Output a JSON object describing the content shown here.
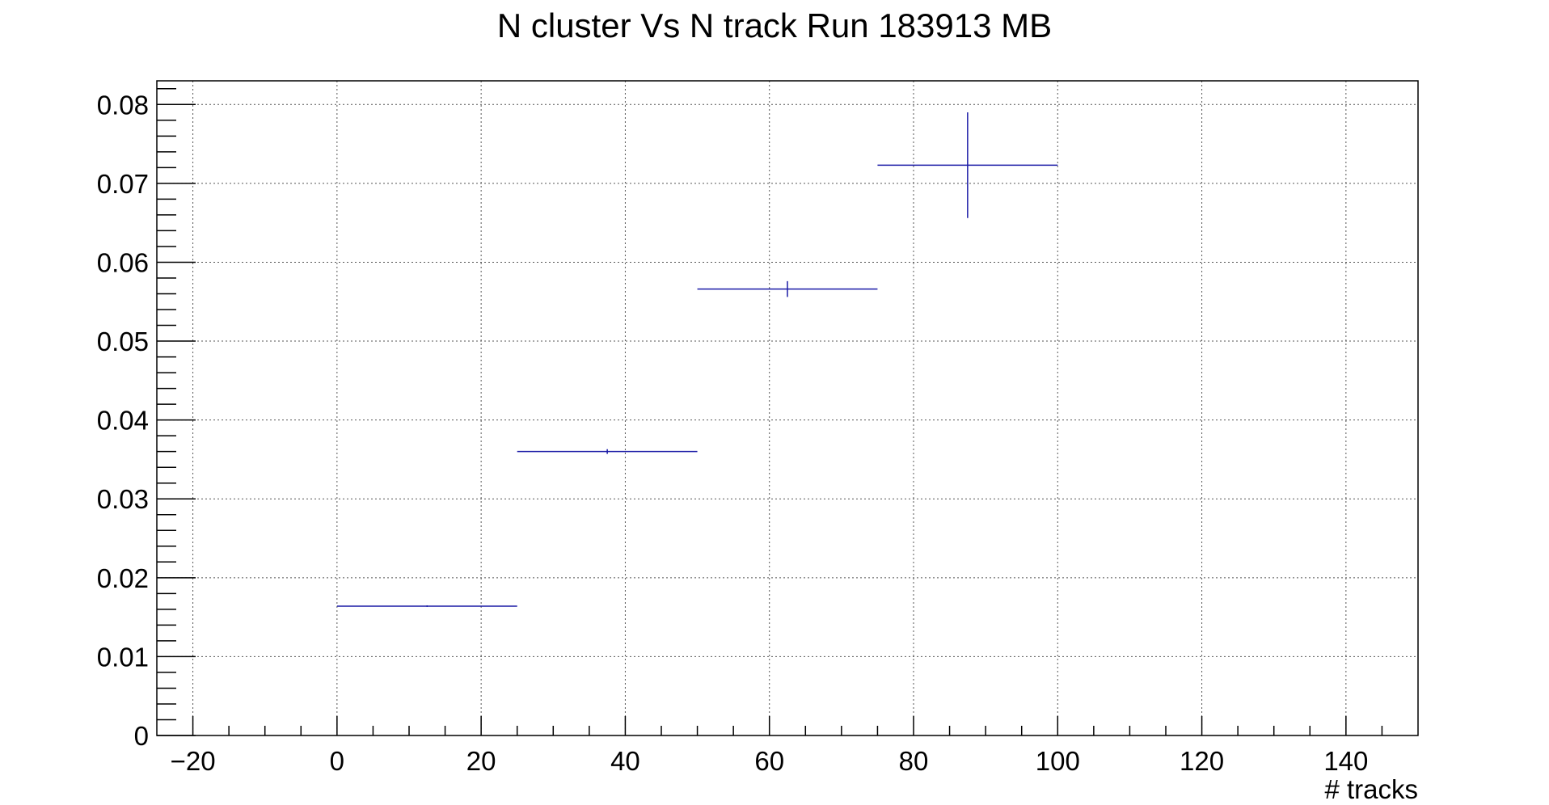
{
  "chart_data": {
    "type": "scatter",
    "title": "N cluster Vs N track Run 183913 MB",
    "xlabel": "# tracks",
    "ylabel": "",
    "xlim": [
      -25,
      150
    ],
    "ylim": [
      0,
      0.083
    ],
    "grid": true,
    "x_ticks": [
      -20,
      0,
      20,
      40,
      60,
      80,
      100,
      120,
      140
    ],
    "x_tick_labels": [
      "−20",
      "0",
      "20",
      "40",
      "60",
      "80",
      "100",
      "120",
      "140"
    ],
    "y_ticks": [
      0,
      0.01,
      0.02,
      0.03,
      0.04,
      0.05,
      0.06,
      0.07,
      0.08
    ],
    "y_tick_labels": [
      "0",
      "0.01",
      "0.02",
      "0.03",
      "0.04",
      "0.05",
      "0.06",
      "0.07",
      "0.08"
    ],
    "series": [
      {
        "color": "#1a1aa6",
        "points": [
          {
            "x": 12.5,
            "y": 0.0164,
            "x_err": 12.5,
            "y_err": 0.0001
          },
          {
            "x": 37.5,
            "y": 0.036,
            "x_err": 12.5,
            "y_err": 0.0003
          },
          {
            "x": 62.5,
            "y": 0.0566,
            "x_err": 12.5,
            "y_err": 0.001
          },
          {
            "x": 87.5,
            "y": 0.0723,
            "x_err": 12.5,
            "y_err": 0.0067
          }
        ]
      }
    ]
  }
}
